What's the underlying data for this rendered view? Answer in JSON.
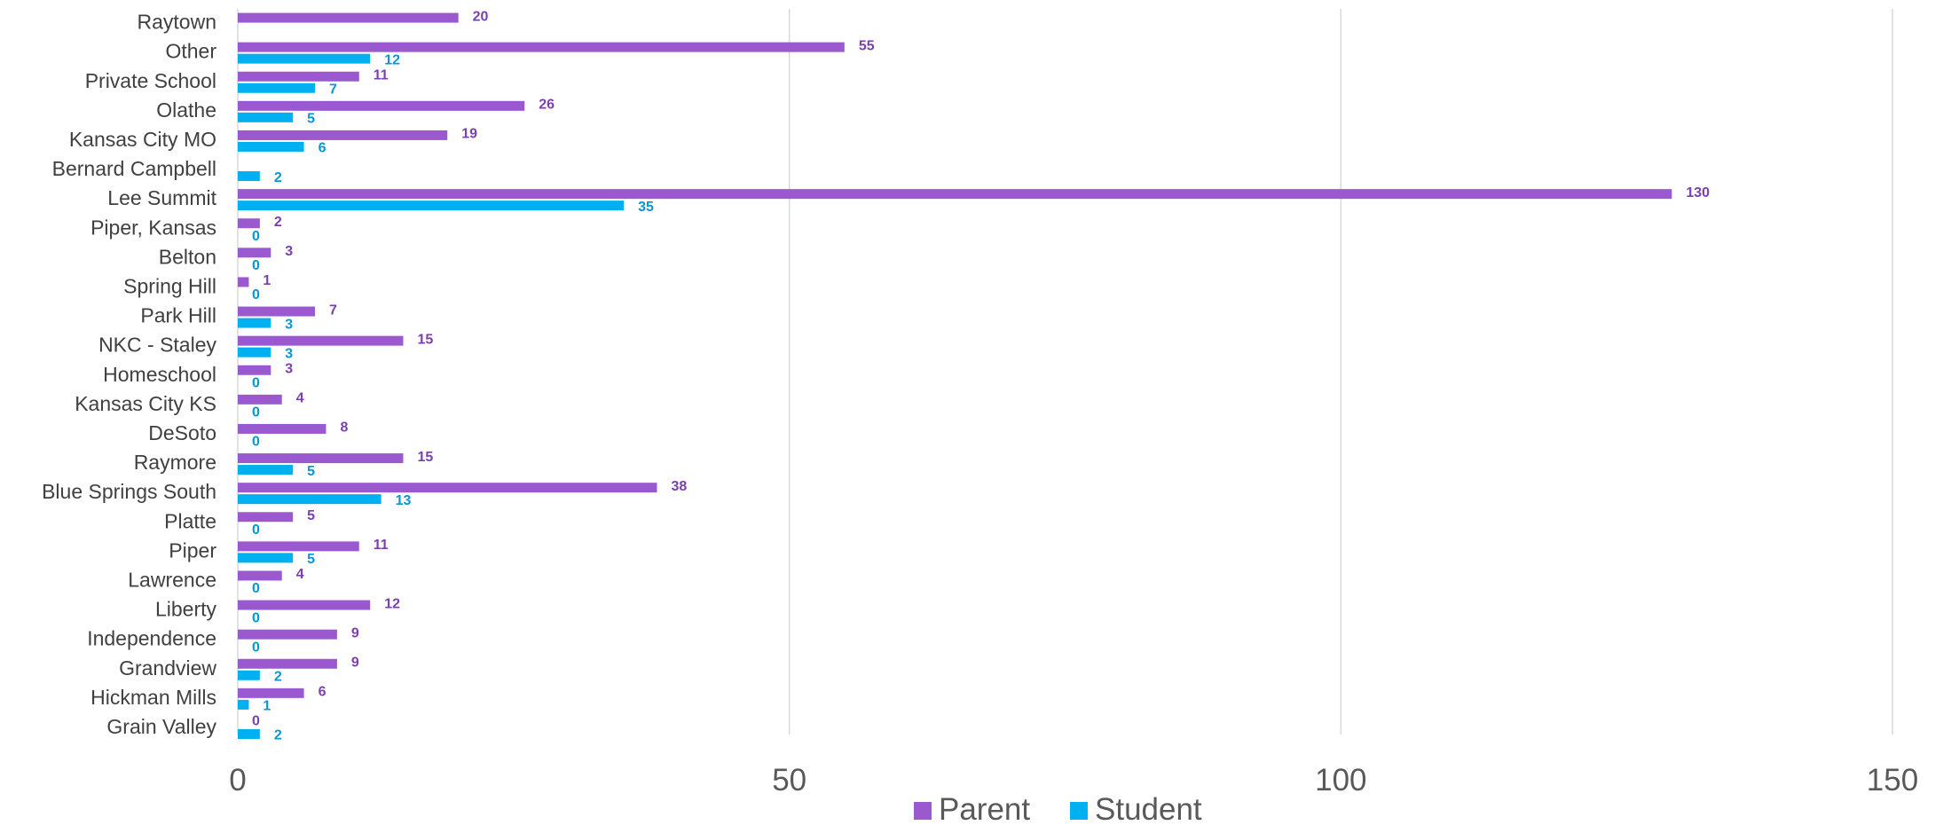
{
  "chart_data": {
    "type": "bar",
    "orientation": "horizontal",
    "categories": [
      "Raytown",
      "Other",
      "Private School",
      "Olathe",
      "Kansas City MO",
      "Bernard Campbell",
      "Lee Summit",
      "Piper, Kansas",
      "Belton",
      "Spring Hill",
      "Park Hill",
      "NKC - Staley",
      "Homeschool",
      "Kansas City KS",
      "DeSoto",
      "Raymore",
      "Blue Springs South",
      "Platte",
      "Piper",
      "Lawrence",
      "Liberty",
      "Independence",
      "Grandview",
      "Hickman Mills",
      "Grain Valley"
    ],
    "series": [
      {
        "name": "Parent",
        "color": "#9b59d0",
        "label_color": "#7b3fb0",
        "values": [
          20,
          55,
          11,
          26,
          19,
          null,
          130,
          2,
          3,
          1,
          7,
          15,
          3,
          4,
          8,
          15,
          38,
          5,
          11,
          4,
          12,
          9,
          9,
          6,
          0
        ]
      },
      {
        "name": "Student",
        "color": "#00b0f0",
        "label_color": "#0a96d2",
        "values": [
          null,
          12,
          7,
          5,
          6,
          2,
          35,
          0,
          0,
          0,
          3,
          3,
          0,
          0,
          0,
          5,
          13,
          0,
          5,
          0,
          0,
          0,
          2,
          1,
          2
        ]
      }
    ],
    "xlim": [
      0,
      150
    ],
    "x_ticks": [
      "0",
      "50",
      "100",
      "150"
    ],
    "x_tick_values": [
      0,
      50,
      100,
      150
    ],
    "grid": "vertical",
    "legend": "bottom-center",
    "title": "",
    "xlabel": "",
    "ylabel": ""
  }
}
